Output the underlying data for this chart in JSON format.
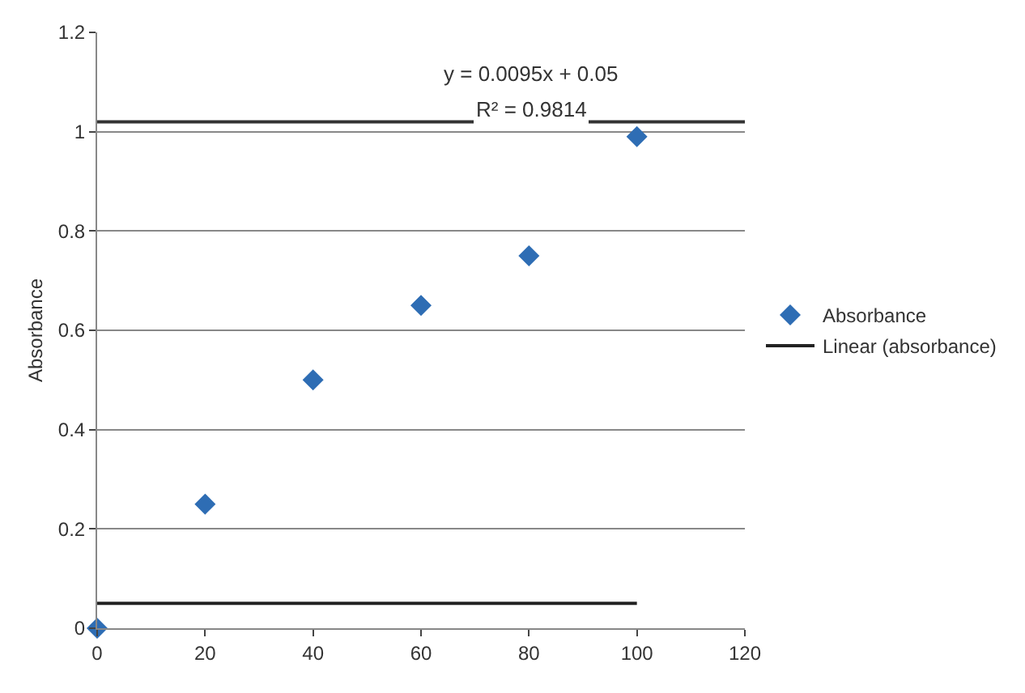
{
  "chart_data": {
    "type": "scatter",
    "ylabel": "Absorbance",
    "x": [
      0,
      20,
      40,
      60,
      80,
      100
    ],
    "series": [
      {
        "name": "Absorbance",
        "color": "#2e6db4",
        "values": [
          0,
          0.25,
          0.5,
          0.65,
          0.75,
          0.99
        ],
        "marker": "diamond"
      },
      {
        "name": "Linear (absorbance)",
        "type": "line",
        "color": "#222222",
        "x": [
          0,
          100
        ],
        "values": [
          0.05,
          0.05
        ],
        "marker": "none"
      }
    ],
    "annotations": [
      "y = 0.0095x + 0.05",
      "R² = 0.9814"
    ],
    "ref_lines": [
      {
        "axis": "y",
        "value": 1.02,
        "color": "#333333"
      }
    ],
    "xlim": [
      0,
      120
    ],
    "xticks": [
      0,
      20,
      40,
      60,
      80,
      100,
      120
    ],
    "ylim": [
      0,
      1.2
    ],
    "yticks": [
      0,
      0.2,
      0.4,
      0.6,
      0.8,
      1,
      1.2
    ],
    "grid": "y",
    "legend": "right"
  }
}
